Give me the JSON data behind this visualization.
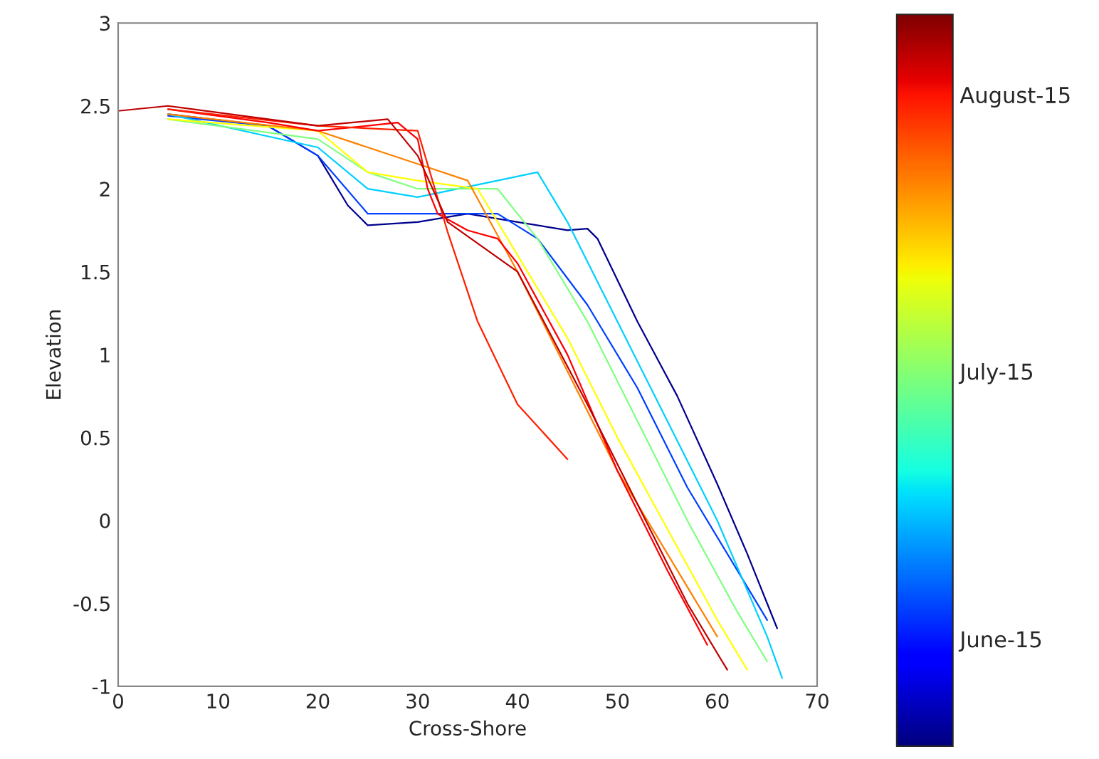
{
  "chart_data": {
    "type": "line",
    "xlabel": "Cross-Shore",
    "ylabel": "Elevation",
    "xlim": [
      0,
      70
    ],
    "xticks": [
      0,
      10,
      20,
      30,
      40,
      50,
      60,
      70
    ],
    "ylim": [
      -1,
      3
    ],
    "yticks": [
      -1,
      -0.5,
      0,
      0.5,
      1,
      1.5,
      2,
      2.5,
      3
    ],
    "clim": [
      154,
      236
    ],
    "cticks": [
      {
        "value": 166,
        "label": "June-15"
      },
      {
        "value": 196,
        "label": "July-15"
      },
      {
        "value": 227,
        "label": "August-15"
      }
    ],
    "grid": false,
    "marker": "none",
    "line_style": "solid",
    "series": [
      {
        "color": "#00008f",
        "x": [
          5,
          15,
          20,
          23,
          25,
          30,
          35,
          40,
          45,
          47,
          48,
          52,
          56,
          60,
          63,
          66
        ],
        "values": [
          2.45,
          2.38,
          2.2,
          1.9,
          1.78,
          1.8,
          1.85,
          1.8,
          1.75,
          1.76,
          1.7,
          1.2,
          0.75,
          0.22,
          -0.2,
          -0.65
        ]
      },
      {
        "color": "#0040ff",
        "x": [
          5,
          15,
          20,
          25,
          30,
          38,
          42,
          47,
          52,
          57,
          62,
          65
        ],
        "values": [
          2.44,
          2.38,
          2.2,
          1.85,
          1.85,
          1.85,
          1.7,
          1.3,
          0.8,
          0.2,
          -0.3,
          -0.6
        ]
      },
      {
        "color": "#00d0ff",
        "x": [
          5,
          20,
          25,
          30,
          38,
          42,
          45,
          50,
          55,
          60,
          65,
          66.5
        ],
        "values": [
          2.45,
          2.25,
          2.0,
          1.95,
          2.05,
          2.1,
          1.8,
          1.2,
          0.6,
          0.0,
          -0.7,
          -0.95
        ]
      },
      {
        "color": "#80ff80",
        "x": [
          5,
          20,
          25,
          30,
          38,
          42,
          47,
          52,
          57,
          62,
          65
        ],
        "values": [
          2.42,
          2.3,
          2.1,
          2.0,
          2.0,
          1.7,
          1.2,
          0.6,
          0.0,
          -0.55,
          -0.85
        ]
      },
      {
        "color": "#ffff00",
        "x": [
          5,
          20,
          25,
          30,
          36,
          40,
          45,
          50,
          55,
          60,
          63
        ],
        "values": [
          2.42,
          2.35,
          2.1,
          2.05,
          2.0,
          1.6,
          1.1,
          0.5,
          -0.05,
          -0.6,
          -0.9
        ]
      },
      {
        "color": "#ff8000",
        "x": [
          5,
          20,
          25,
          30,
          35,
          40,
          45,
          50,
          55,
          60
        ],
        "values": [
          2.45,
          2.35,
          2.25,
          2.15,
          2.05,
          1.5,
          0.9,
          0.3,
          -0.2,
          -0.7
        ]
      },
      {
        "color": "#ff0000",
        "x": [
          5,
          15,
          20,
          25,
          28,
          30,
          31,
          32,
          35,
          38,
          40,
          45,
          50,
          55,
          59
        ],
        "values": [
          2.48,
          2.4,
          2.35,
          2.38,
          2.4,
          2.3,
          2.0,
          1.85,
          1.75,
          1.7,
          1.55,
          1.0,
          0.3,
          -0.3,
          -0.75
        ]
      },
      {
        "color": "#ff2000",
        "x": [
          5,
          20,
          30,
          33,
          36,
          40,
          45
        ],
        "values": [
          2.48,
          2.38,
          2.35,
          1.74,
          1.2,
          0.7,
          0.37
        ]
      },
      {
        "color": "#c00000",
        "x": [
          0,
          5,
          20,
          27,
          30,
          33,
          40,
          47,
          52,
          57,
          61
        ],
        "values": [
          2.47,
          2.5,
          2.38,
          2.42,
          2.2,
          1.8,
          1.5,
          0.7,
          0.1,
          -0.5,
          -0.9
        ]
      }
    ]
  }
}
